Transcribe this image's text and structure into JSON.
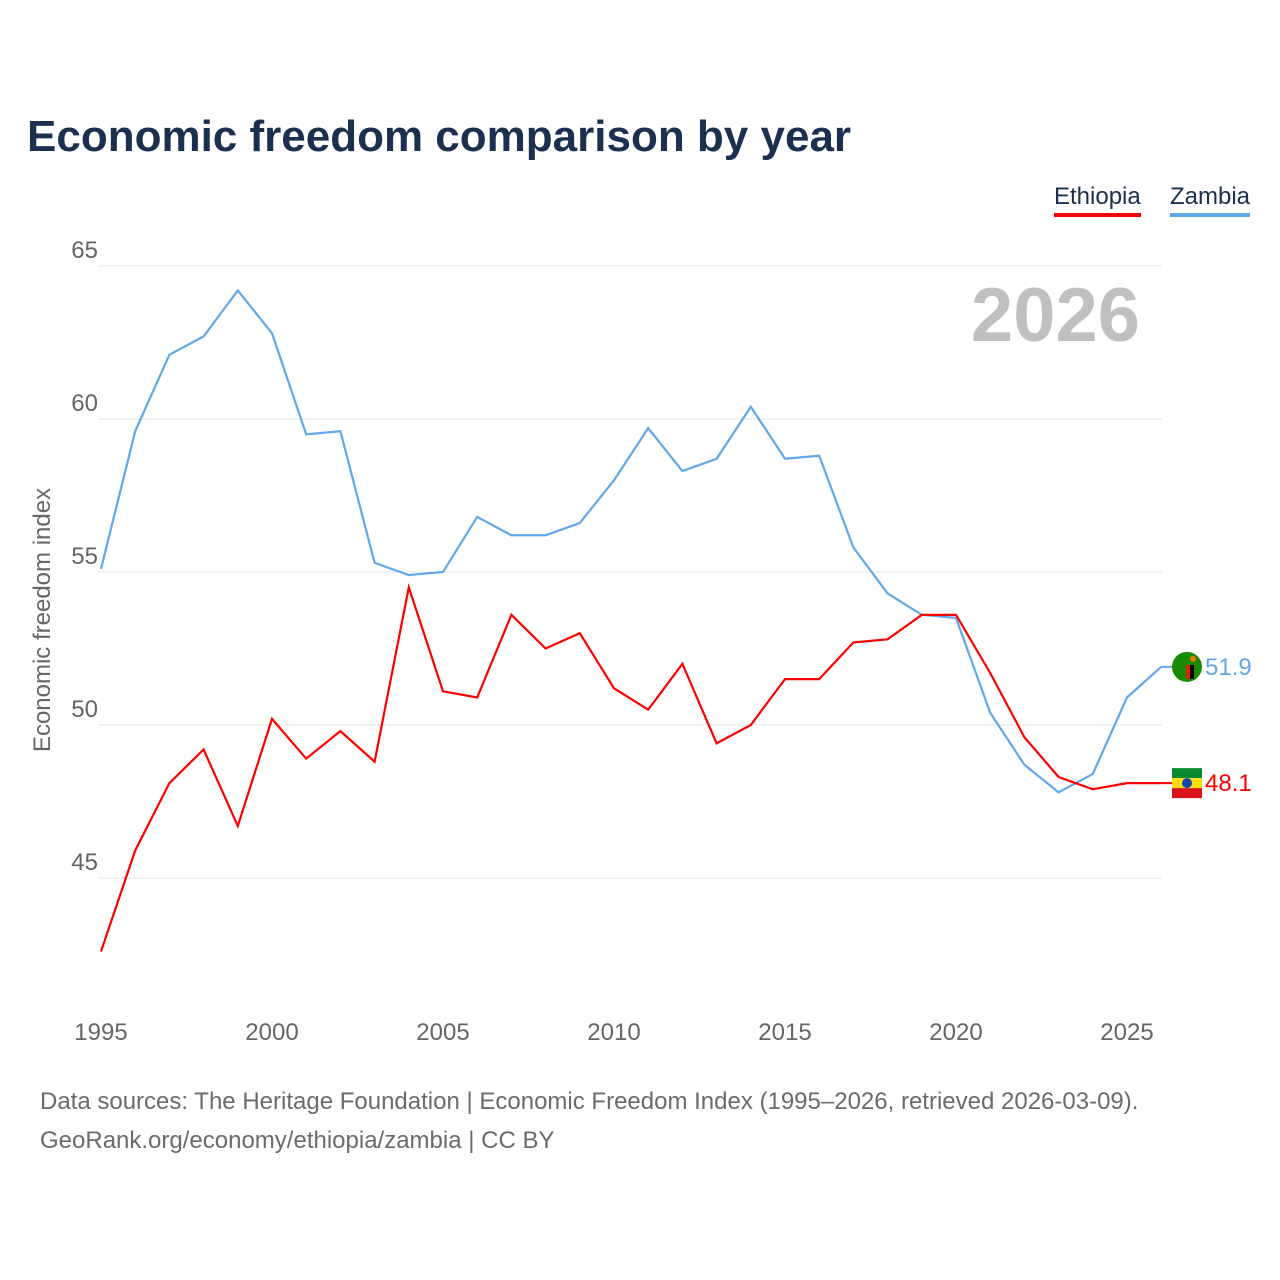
{
  "chart_data": {
    "type": "line",
    "title": "Economic freedom comparison by year",
    "ylabel": "Economic freedom index",
    "xlabel": "",
    "year_overlay": "2026",
    "ylim": [
      41.5,
      65.5
    ],
    "xlim": [
      1995,
      2026
    ],
    "yticks": [
      45,
      50,
      55,
      60,
      65
    ],
    "xticks": [
      1995,
      2000,
      2005,
      2010,
      2015,
      2020,
      2025
    ],
    "legend_placement": "top-right",
    "x": [
      1995,
      1996,
      1997,
      1998,
      1999,
      2000,
      2001,
      2002,
      2003,
      2004,
      2005,
      2006,
      2007,
      2008,
      2009,
      2010,
      2011,
      2012,
      2013,
      2014,
      2015,
      2016,
      2017,
      2018,
      2019,
      2020,
      2021,
      2022,
      2023,
      2024,
      2025,
      2026
    ],
    "series": [
      {
        "name": "Ethiopia",
        "color": "#ff0000",
        "end_label": "48.1",
        "values": [
          42.6,
          45.9,
          48.1,
          49.2,
          46.7,
          50.2,
          48.9,
          49.8,
          48.8,
          54.5,
          51.1,
          50.9,
          53.6,
          52.5,
          53.0,
          51.2,
          50.5,
          52.0,
          49.4,
          50.0,
          51.5,
          51.5,
          52.7,
          52.8,
          53.6,
          53.6,
          51.7,
          49.6,
          48.3,
          47.9,
          48.1,
          48.1
        ]
      },
      {
        "name": "Zambia",
        "color": "#62a8e8",
        "end_label": "51.9",
        "values": [
          55.1,
          59.6,
          62.1,
          62.7,
          64.2,
          62.8,
          59.5,
          59.6,
          55.3,
          54.9,
          55.0,
          56.8,
          56.2,
          56.2,
          56.6,
          58.0,
          59.7,
          58.3,
          58.7,
          60.4,
          58.7,
          58.8,
          55.8,
          54.3,
          53.6,
          53.5,
          50.4,
          48.7,
          47.8,
          48.4,
          50.9,
          51.9
        ]
      }
    ]
  },
  "footer": {
    "line1": "Data sources: The Heritage Foundation | Economic Freedom Index (1995–2026, retrieved 2026-03-09).",
    "line2": "GeoRank.org/economy/ethiopia/zambia | CC BY"
  }
}
